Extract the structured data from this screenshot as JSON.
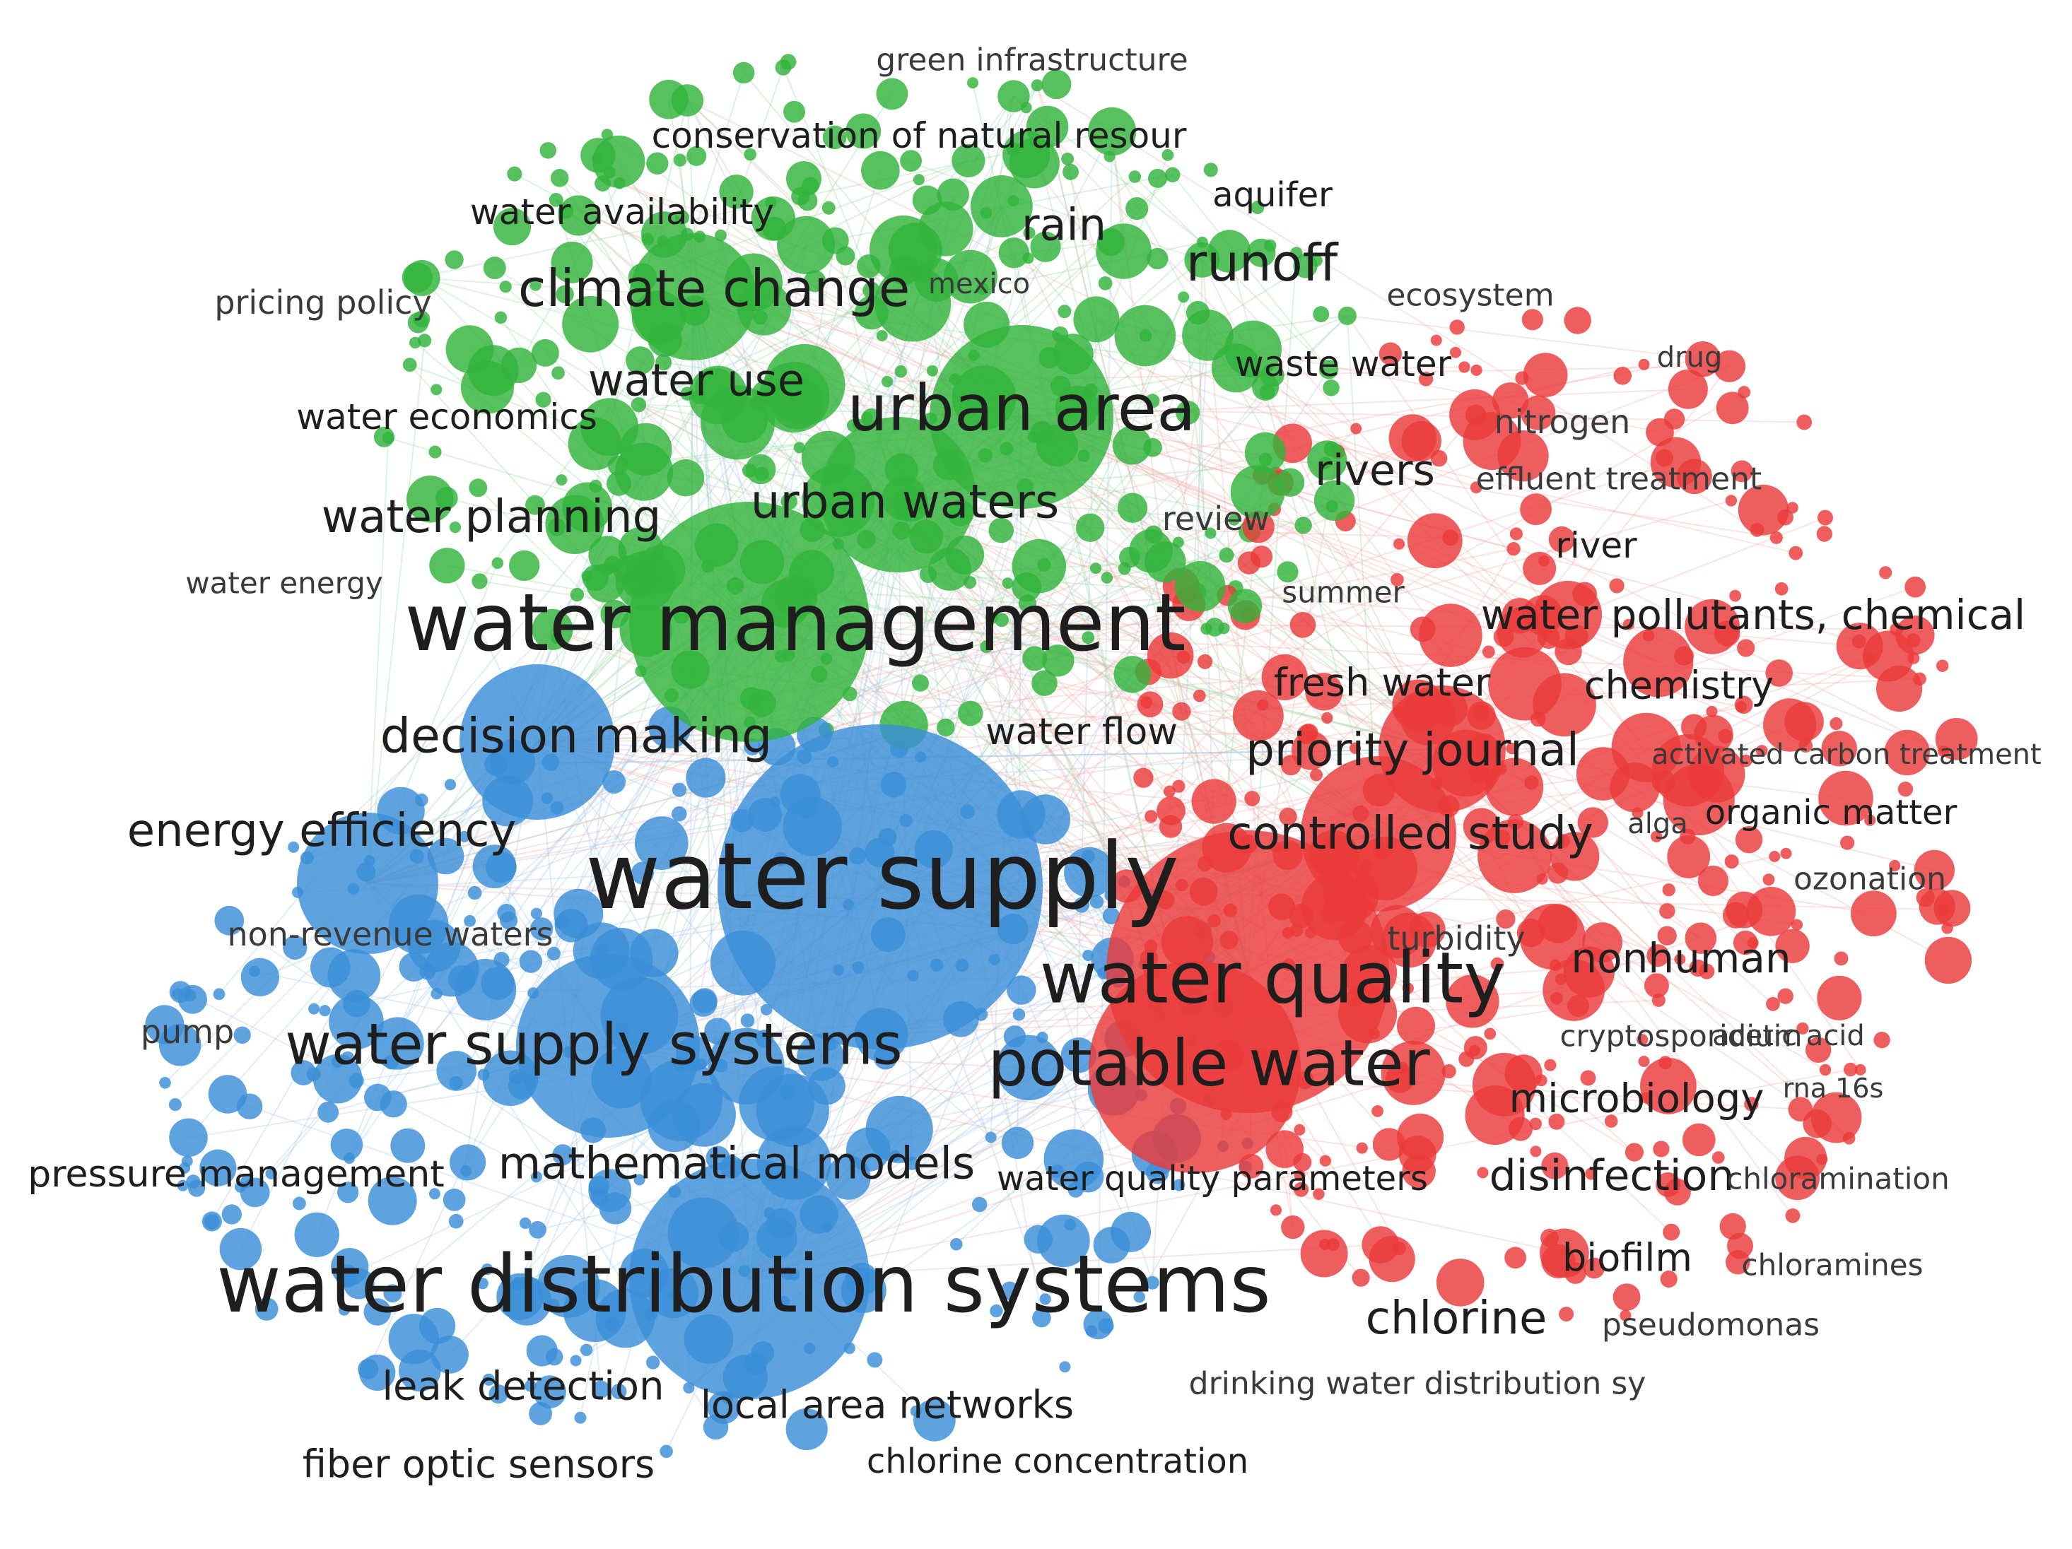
{
  "clusters": [
    {
      "key": "green",
      "color": "#32b33c"
    },
    {
      "key": "blue",
      "color": "#3b8fd8"
    },
    {
      "key": "red",
      "color": "#ec3b3b"
    }
  ],
  "labels": [
    {
      "text": "green infrastructure",
      "cluster": "green"
    },
    {
      "text": "conservation of natural resour",
      "cluster": "green"
    },
    {
      "text": "water availability",
      "cluster": "green"
    },
    {
      "text": "aquifer",
      "cluster": "green"
    },
    {
      "text": "rain",
      "cluster": "green"
    },
    {
      "text": "runoff",
      "cluster": "green"
    },
    {
      "text": "pricing policy",
      "cluster": "green"
    },
    {
      "text": "climate change",
      "cluster": "green"
    },
    {
      "text": "mexico",
      "cluster": "green"
    },
    {
      "text": "ecosystem",
      "cluster": "red"
    },
    {
      "text": "waste water",
      "cluster": "green"
    },
    {
      "text": "drug",
      "cluster": "red"
    },
    {
      "text": "water use",
      "cluster": "green"
    },
    {
      "text": "urban area",
      "cluster": "green"
    },
    {
      "text": "water economics",
      "cluster": "green"
    },
    {
      "text": "nitrogen",
      "cluster": "red"
    },
    {
      "text": "rivers",
      "cluster": "red"
    },
    {
      "text": "effluent treatment",
      "cluster": "red"
    },
    {
      "text": "water planning",
      "cluster": "green"
    },
    {
      "text": "urban waters",
      "cluster": "green"
    },
    {
      "text": "review",
      "cluster": "green"
    },
    {
      "text": "river",
      "cluster": "red"
    },
    {
      "text": "water energy",
      "cluster": "green"
    },
    {
      "text": "summer",
      "cluster": "red"
    },
    {
      "text": "water management",
      "cluster": "green"
    },
    {
      "text": "water pollutants, chemical",
      "cluster": "red"
    },
    {
      "text": "fresh water",
      "cluster": "red"
    },
    {
      "text": "chemistry",
      "cluster": "red"
    },
    {
      "text": "decision making",
      "cluster": "blue"
    },
    {
      "text": "water flow",
      "cluster": "green"
    },
    {
      "text": "priority journal",
      "cluster": "red"
    },
    {
      "text": "activated carbon treatment",
      "cluster": "red"
    },
    {
      "text": "energy efficiency",
      "cluster": "blue"
    },
    {
      "text": "controlled study",
      "cluster": "red"
    },
    {
      "text": "alga",
      "cluster": "red"
    },
    {
      "text": "organic matter",
      "cluster": "red"
    },
    {
      "text": "water supply",
      "cluster": "blue"
    },
    {
      "text": "ozonation",
      "cluster": "red"
    },
    {
      "text": "non-revenue waters",
      "cluster": "blue"
    },
    {
      "text": "turbidity",
      "cluster": "red"
    },
    {
      "text": "nonhuman",
      "cluster": "red"
    },
    {
      "text": "water quality",
      "cluster": "red"
    },
    {
      "text": "pump",
      "cluster": "blue"
    },
    {
      "text": "water supply systems",
      "cluster": "blue"
    },
    {
      "text": "cryptosporidium",
      "cluster": "red"
    },
    {
      "text": "acetic acid",
      "cluster": "red"
    },
    {
      "text": "potable water",
      "cluster": "red"
    },
    {
      "text": "microbiology",
      "cluster": "red"
    },
    {
      "text": "rna 16s",
      "cluster": "red"
    },
    {
      "text": "pressure management",
      "cluster": "blue"
    },
    {
      "text": "mathematical models",
      "cluster": "blue"
    },
    {
      "text": "water quality parameters",
      "cluster": "red"
    },
    {
      "text": "disinfection",
      "cluster": "red"
    },
    {
      "text": "chloramination",
      "cluster": "red"
    },
    {
      "text": "biofilm",
      "cluster": "red"
    },
    {
      "text": "chloramines",
      "cluster": "red"
    },
    {
      "text": "water distribution systems",
      "cluster": "blue"
    },
    {
      "text": "chlorine",
      "cluster": "red"
    },
    {
      "text": "pseudomonas",
      "cluster": "red"
    },
    {
      "text": "leak detection",
      "cluster": "blue"
    },
    {
      "text": "local area networks",
      "cluster": "blue"
    },
    {
      "text": "drinking water distribution sy",
      "cluster": "red"
    },
    {
      "text": "fiber optic sensors",
      "cluster": "blue"
    },
    {
      "text": "chlorine concentration",
      "cluster": "blue"
    }
  ]
}
